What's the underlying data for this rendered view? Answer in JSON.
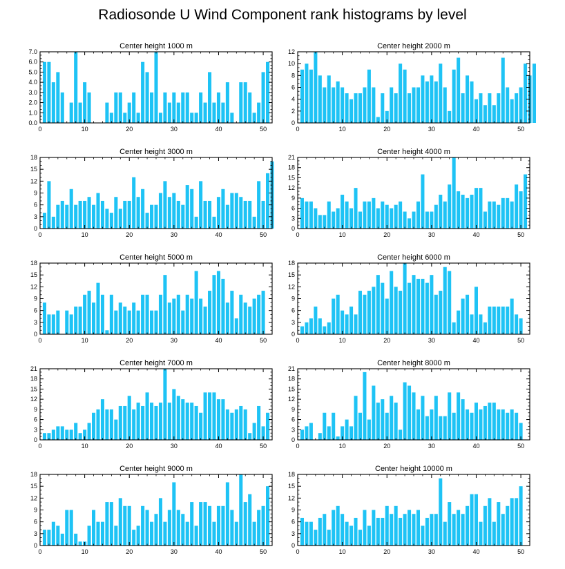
{
  "title": "Radiosonde U Wind Component rank histograms by level",
  "bar_color": "#1EC3F5",
  "chart_data": [
    {
      "type": "bar",
      "title": "Center height 1000 m",
      "xlim": [
        0,
        52
      ],
      "ylim": [
        0,
        7
      ],
      "xticks": [
        0,
        10,
        20,
        30,
        40,
        50
      ],
      "xticklabels": [
        "0",
        "10",
        "20",
        "30",
        "40",
        "50"
      ],
      "yticks": [
        0,
        1,
        2,
        3,
        4,
        5,
        6,
        7
      ],
      "yticklabels": [
        "0.0",
        "1.0",
        "2.0",
        "3.0",
        "4.0",
        "5.0",
        "6.0",
        "7.0"
      ],
      "values": [
        6,
        6,
        4,
        5,
        3,
        0,
        2,
        7,
        2,
        4,
        3,
        0,
        0,
        0,
        2,
        1,
        3,
        3,
        1,
        2,
        3,
        1,
        6,
        5,
        3,
        7,
        1,
        3,
        2,
        3,
        2,
        3,
        3,
        1,
        1,
        3,
        2,
        5,
        2,
        3,
        2,
        4,
        1,
        0,
        4,
        4,
        3,
        1,
        2,
        5,
        6
      ]
    },
    {
      "type": "bar",
      "title": "Center height 2000 m",
      "xlim": [
        0,
        52
      ],
      "ylim": [
        0,
        12
      ],
      "xticks": [
        0,
        10,
        20,
        30,
        40,
        50
      ],
      "xticklabels": [
        "0",
        "10",
        "20",
        "30",
        "40",
        "50"
      ],
      "yticks": [
        0,
        2,
        4,
        6,
        8,
        10,
        12
      ],
      "yticklabels": [
        "0",
        "2",
        "4",
        "6",
        "8",
        "10",
        "12"
      ],
      "values": [
        9,
        10,
        9,
        12,
        8,
        6,
        8,
        6,
        7,
        6,
        5,
        4,
        5,
        5,
        6,
        9,
        6,
        1,
        5,
        2,
        6,
        5,
        10,
        9,
        5,
        6,
        6,
        8,
        7,
        8,
        7,
        10,
        6,
        2,
        9,
        11,
        5,
        8,
        7,
        4,
        5,
        3,
        5,
        3,
        5,
        11,
        6,
        4,
        5,
        6,
        10,
        8,
        10
      ]
    },
    {
      "type": "bar",
      "title": "Center height 3000 m",
      "xlim": [
        0,
        52
      ],
      "ylim": [
        0,
        18
      ],
      "xticks": [
        0,
        10,
        20,
        30,
        40,
        50
      ],
      "xticklabels": [
        "0",
        "10",
        "20",
        "30",
        "40",
        "50"
      ],
      "yticks": [
        0,
        3,
        6,
        9,
        12,
        15,
        18
      ],
      "yticklabels": [
        "0",
        "3",
        "6",
        "9",
        "12",
        "15",
        "18"
      ],
      "values": [
        4,
        12,
        3,
        6,
        7,
        6,
        10,
        6,
        7,
        7,
        8,
        6,
        9,
        7,
        5,
        4,
        8,
        5,
        7,
        7,
        13,
        8,
        10,
        4,
        6,
        6,
        9,
        12,
        8,
        9,
        7,
        6,
        11,
        10,
        3,
        12,
        7,
        7,
        3,
        8,
        10,
        6,
        9,
        9,
        8,
        7,
        7,
        3,
        12,
        7,
        14,
        17
      ]
    },
    {
      "type": "bar",
      "title": "Center height 4000 m",
      "xlim": [
        0,
        52
      ],
      "ylim": [
        0,
        21
      ],
      "xticks": [
        0,
        10,
        20,
        30,
        40,
        50
      ],
      "xticklabels": [
        "0",
        "10",
        "20",
        "30",
        "40",
        "50"
      ],
      "yticks": [
        0,
        3,
        6,
        9,
        12,
        15,
        18,
        21
      ],
      "yticklabels": [
        "0",
        "3",
        "6",
        "9",
        "12",
        "15",
        "18",
        "21"
      ],
      "values": [
        9,
        8,
        8,
        6,
        4,
        4,
        8,
        5,
        6,
        10,
        8,
        6,
        12,
        5,
        8,
        8,
        9,
        6,
        8,
        7,
        6,
        7,
        8,
        5,
        3,
        5,
        8,
        16,
        5,
        5,
        7,
        10,
        8,
        13,
        21,
        11,
        10,
        9,
        10,
        12,
        12,
        5,
        8,
        8,
        7,
        9,
        9,
        8,
        13,
        11,
        16
      ]
    },
    {
      "type": "bar",
      "title": "Center height 5000 m",
      "xlim": [
        0,
        52
      ],
      "ylim": [
        0,
        18
      ],
      "xticks": [
        0,
        10,
        20,
        30,
        40,
        50
      ],
      "xticklabels": [
        "0",
        "10",
        "20",
        "30",
        "40",
        "50"
      ],
      "yticks": [
        0,
        3,
        6,
        9,
        12,
        15,
        18
      ],
      "yticklabels": [
        "0",
        "3",
        "6",
        "9",
        "12",
        "15",
        "18"
      ],
      "values": [
        8,
        5,
        5,
        6,
        0,
        6,
        5,
        7,
        7,
        10,
        11,
        8,
        13,
        10,
        1,
        10,
        6,
        8,
        7,
        6,
        8,
        6,
        10,
        10,
        6,
        6,
        10,
        15,
        8,
        9,
        10,
        6,
        10,
        9,
        16,
        9,
        7,
        11,
        15,
        16,
        14,
        8,
        11,
        4,
        10,
        8,
        7,
        9,
        10,
        11
      ]
    },
    {
      "type": "bar",
      "title": "Center height 6000 m",
      "xlim": [
        0,
        52
      ],
      "ylim": [
        0,
        18
      ],
      "xticks": [
        0,
        10,
        20,
        30,
        40,
        50
      ],
      "xticklabels": [
        "0",
        "10",
        "20",
        "30",
        "40",
        "50"
      ],
      "yticks": [
        0,
        3,
        6,
        9,
        12,
        15,
        18
      ],
      "yticklabels": [
        "0",
        "3",
        "6",
        "9",
        "12",
        "15",
        "18"
      ],
      "values": [
        2,
        3,
        4,
        7,
        4,
        2,
        3,
        9,
        10,
        6,
        5,
        7,
        5,
        11,
        10,
        11,
        12,
        15,
        13,
        9,
        16,
        12,
        11,
        18,
        13,
        15,
        14,
        14,
        13,
        15,
        10,
        11,
        17,
        16,
        3,
        6,
        9,
        10,
        5,
        12,
        5,
        3,
        7,
        7,
        7,
        7,
        7,
        9,
        5,
        4
      ]
    },
    {
      "type": "bar",
      "title": "Center height 7000 m",
      "xlim": [
        0,
        52
      ],
      "ylim": [
        0,
        21
      ],
      "xticks": [
        0,
        10,
        20,
        30,
        40,
        50
      ],
      "xticklabels": [
        "0",
        "10",
        "20",
        "30",
        "40",
        "50"
      ],
      "yticks": [
        0,
        3,
        6,
        9,
        12,
        15,
        18,
        21
      ],
      "yticklabels": [
        "0",
        "3",
        "6",
        "9",
        "12",
        "15",
        "18",
        "21"
      ],
      "values": [
        2,
        2,
        3,
        4,
        4,
        3,
        3,
        5,
        2,
        3,
        5,
        8,
        9,
        12,
        9,
        9,
        6,
        10,
        10,
        13,
        9,
        11,
        10,
        14,
        11,
        10,
        11,
        21,
        11,
        15,
        13,
        12,
        11,
        11,
        10,
        8,
        14,
        14,
        14,
        12,
        12,
        9,
        8,
        9,
        10,
        9,
        2,
        5,
        10,
        4,
        8
      ]
    },
    {
      "type": "bar",
      "title": "Center height 8000 m",
      "xlim": [
        0,
        52
      ],
      "ylim": [
        0,
        21
      ],
      "xticks": [
        0,
        10,
        20,
        30,
        40,
        50
      ],
      "xticklabels": [
        "0",
        "10",
        "20",
        "30",
        "40",
        "50"
      ],
      "yticks": [
        0,
        3,
        6,
        9,
        12,
        15,
        18,
        21
      ],
      "yticklabels": [
        "0",
        "3",
        "6",
        "9",
        "12",
        "15",
        "18",
        "21"
      ],
      "values": [
        3,
        4,
        5,
        0,
        2,
        8,
        4,
        8,
        1,
        4,
        6,
        4,
        13,
        8,
        20,
        6,
        16,
        11,
        12,
        8,
        13,
        11,
        3,
        17,
        16,
        14,
        9,
        13,
        7,
        9,
        13,
        7,
        7,
        14,
        8,
        14,
        12,
        9,
        8,
        11,
        9,
        10,
        11,
        11,
        9,
        9,
        8,
        9,
        8,
        5
      ]
    },
    {
      "type": "bar",
      "title": "Center height 9000 m",
      "xlim": [
        0,
        52
      ],
      "ylim": [
        0,
        18
      ],
      "xticks": [
        0,
        10,
        20,
        30,
        40,
        50
      ],
      "xticklabels": [
        "0",
        "10",
        "20",
        "30",
        "40",
        "50"
      ],
      "yticks": [
        0,
        3,
        6,
        9,
        12,
        15,
        18
      ],
      "yticklabels": [
        "0",
        "3",
        "6",
        "9",
        "12",
        "15",
        "18"
      ],
      "values": [
        4,
        4,
        6,
        5,
        3,
        9,
        9,
        3,
        1,
        1,
        5,
        9,
        6,
        6,
        11,
        11,
        5,
        12,
        10,
        10,
        4,
        5,
        10,
        9,
        6,
        8,
        12,
        6,
        9,
        16,
        9,
        8,
        6,
        11,
        5,
        11,
        11,
        10,
        6,
        10,
        10,
        16,
        9,
        6,
        18,
        11,
        13,
        6,
        9,
        10,
        15
      ]
    },
    {
      "type": "bar",
      "title": "Center height 10000 m",
      "xlim": [
        0,
        52
      ],
      "ylim": [
        0,
        18
      ],
      "xticks": [
        0,
        10,
        20,
        30,
        40,
        50
      ],
      "xticklabels": [
        "0",
        "10",
        "20",
        "30",
        "40",
        "50"
      ],
      "yticks": [
        0,
        3,
        6,
        9,
        12,
        15,
        18
      ],
      "yticklabels": [
        "0",
        "3",
        "6",
        "9",
        "12",
        "15",
        "18"
      ],
      "values": [
        7,
        6,
        6,
        4,
        7,
        8,
        4,
        9,
        10,
        8,
        6,
        5,
        7,
        4,
        9,
        5,
        9,
        7,
        7,
        10,
        8,
        10,
        7,
        8,
        9,
        8,
        9,
        5,
        7,
        8,
        8,
        17,
        6,
        11,
        8,
        9,
        8,
        10,
        13,
        13,
        6,
        10,
        12,
        6,
        11,
        8,
        10,
        12,
        12,
        15
      ]
    }
  ]
}
